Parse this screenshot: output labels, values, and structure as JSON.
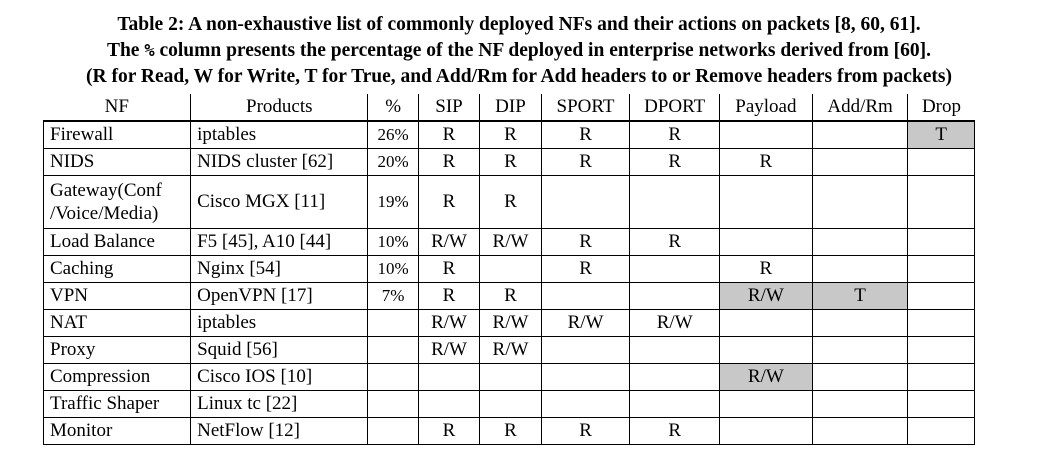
{
  "caption": {
    "line1": "Table 2: A non-exhaustive list of commonly deployed NFs and their actions on packets [8, 60, 61].",
    "line2_pre": "The ",
    "line2_symbol": "%",
    "line2_post": " column presents the percentage of the NF deployed in enterprise networks derived from [60].",
    "line3": "(R for Read, W for Write, T for True, and Add/Rm for Add headers to or Remove headers from packets)"
  },
  "table": {
    "headers": [
      "NF",
      "Products",
      "%",
      "SIP",
      "DIP",
      "SPORT",
      "DPORT",
      "Payload",
      "Add/Rm",
      "Drop"
    ],
    "rows": [
      {
        "nf": "Firewall",
        "products": "iptables",
        "pct": "26%",
        "sip": "R",
        "dip": "R",
        "sport": "R",
        "dport": "R",
        "payload": "",
        "addrm": "",
        "drop": "T"
      },
      {
        "nf": "NIDS",
        "products": "NIDS cluster [62]",
        "pct": "20%",
        "sip": "R",
        "dip": "R",
        "sport": "R",
        "dport": "R",
        "payload": "R",
        "addrm": "",
        "drop": ""
      },
      {
        "nf": "Gateway(Conf /Voice/Media)",
        "products": "Cisco MGX [11]",
        "pct": "19%",
        "sip": "R",
        "dip": "R",
        "sport": "",
        "dport": "",
        "payload": "",
        "addrm": "",
        "drop": ""
      },
      {
        "nf": "Load Balance",
        "products": "F5 [45], A10 [44]",
        "pct": "10%",
        "sip": "R/W",
        "dip": "R/W",
        "sport": "R",
        "dport": "R",
        "payload": "",
        "addrm": "",
        "drop": ""
      },
      {
        "nf": "Caching",
        "products": "Nginx [54]",
        "pct": "10%",
        "sip": "R",
        "dip": "",
        "sport": "R",
        "dport": "",
        "payload": "R",
        "addrm": "",
        "drop": ""
      },
      {
        "nf": "VPN",
        "products": "OpenVPN [17]",
        "pct": "7%",
        "sip": "R",
        "dip": "R",
        "sport": "",
        "dport": "",
        "payload": "R/W",
        "addrm": "T",
        "drop": ""
      },
      {
        "nf": "NAT",
        "products": "iptables",
        "pct": "",
        "sip": "R/W",
        "dip": "R/W",
        "sport": "R/W",
        "dport": "R/W",
        "payload": "",
        "addrm": "",
        "drop": ""
      },
      {
        "nf": "Proxy",
        "products": "Squid [56]",
        "pct": "",
        "sip": "R/W",
        "dip": "R/W",
        "sport": "",
        "dport": "",
        "payload": "",
        "addrm": "",
        "drop": ""
      },
      {
        "nf": "Compression",
        "products": "Cisco IOS [10]",
        "pct": "",
        "sip": "",
        "dip": "",
        "sport": "",
        "dport": "",
        "payload": "R/W",
        "addrm": "",
        "drop": ""
      },
      {
        "nf": "Traffic Shaper",
        "products": "Linux tc [22]",
        "pct": "",
        "sip": "",
        "dip": "",
        "sport": "",
        "dport": "",
        "payload": "",
        "addrm": "",
        "drop": ""
      },
      {
        "nf": "Monitor",
        "products": "NetFlow [12]",
        "pct": "",
        "sip": "R",
        "dip": "R",
        "sport": "R",
        "dport": "R",
        "payload": "",
        "addrm": "",
        "drop": ""
      }
    ]
  },
  "colors": {
    "shade": "#c8c8c8"
  }
}
